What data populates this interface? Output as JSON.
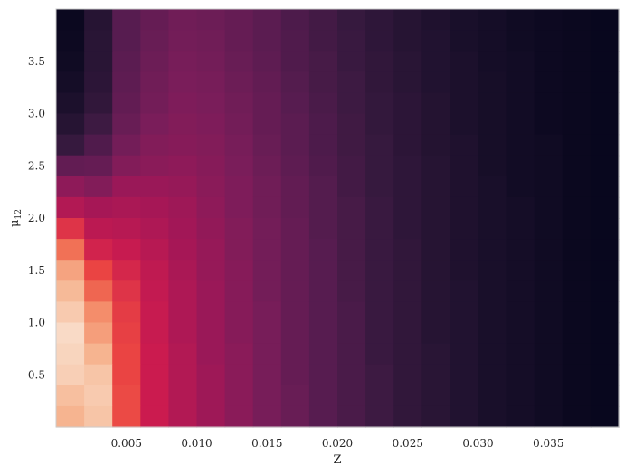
{
  "chart_data": {
    "type": "heatmap",
    "title": "",
    "xlabel": "Z",
    "ylabel": "μ",
    "ylabel_sub": "12",
    "x_ticks": [
      0.005,
      0.01,
      0.015,
      0.02,
      0.025,
      0.03,
      0.035
    ],
    "x_tick_labels": [
      "0.005",
      "0.010",
      "0.015",
      "0.020",
      "0.025",
      "0.030",
      "0.035"
    ],
    "y_ticks": [
      0.5,
      1.0,
      1.5,
      2.0,
      2.5,
      3.0,
      3.5
    ],
    "y_tick_labels": [
      "0.5",
      "1.0",
      "1.5",
      "2.0",
      "2.5",
      "3.0",
      "3.5"
    ],
    "xlim": [
      0.0,
      0.04
    ],
    "ylim": [
      0.0,
      4.0
    ],
    "n_cols": 20,
    "n_rows": 20,
    "colormap": "rocket",
    "grid": false,
    "z_rows_top_to_bottom": [
      [
        0.03,
        0.14,
        0.3,
        0.34,
        0.37,
        0.36,
        0.34,
        0.31,
        0.27,
        0.24,
        0.2,
        0.17,
        0.14,
        0.11,
        0.09,
        0.07,
        0.05,
        0.04,
        0.03,
        0.02
      ],
      [
        0.04,
        0.15,
        0.3,
        0.35,
        0.38,
        0.37,
        0.34,
        0.31,
        0.28,
        0.24,
        0.21,
        0.17,
        0.14,
        0.12,
        0.09,
        0.07,
        0.05,
        0.04,
        0.03,
        0.02
      ],
      [
        0.05,
        0.15,
        0.31,
        0.36,
        0.39,
        0.38,
        0.35,
        0.32,
        0.28,
        0.25,
        0.21,
        0.18,
        0.15,
        0.12,
        0.1,
        0.07,
        0.06,
        0.04,
        0.03,
        0.02
      ],
      [
        0.07,
        0.16,
        0.32,
        0.37,
        0.4,
        0.39,
        0.36,
        0.33,
        0.29,
        0.25,
        0.22,
        0.18,
        0.15,
        0.12,
        0.1,
        0.08,
        0.06,
        0.04,
        0.03,
        0.02
      ],
      [
        0.1,
        0.18,
        0.33,
        0.38,
        0.41,
        0.4,
        0.37,
        0.34,
        0.3,
        0.26,
        0.22,
        0.19,
        0.16,
        0.13,
        0.1,
        0.08,
        0.06,
        0.04,
        0.03,
        0.02
      ],
      [
        0.14,
        0.22,
        0.35,
        0.4,
        0.42,
        0.41,
        0.38,
        0.34,
        0.31,
        0.27,
        0.23,
        0.19,
        0.16,
        0.13,
        0.1,
        0.08,
        0.06,
        0.04,
        0.03,
        0.02
      ],
      [
        0.2,
        0.28,
        0.38,
        0.42,
        0.43,
        0.42,
        0.39,
        0.35,
        0.31,
        0.27,
        0.23,
        0.2,
        0.16,
        0.13,
        0.11,
        0.08,
        0.06,
        0.05,
        0.03,
        0.02
      ],
      [
        0.33,
        0.34,
        0.42,
        0.44,
        0.45,
        0.43,
        0.4,
        0.36,
        0.32,
        0.28,
        0.24,
        0.2,
        0.17,
        0.14,
        0.11,
        0.08,
        0.06,
        0.05,
        0.03,
        0.02
      ],
      [
        0.45,
        0.42,
        0.48,
        0.48,
        0.47,
        0.44,
        0.41,
        0.37,
        0.33,
        0.29,
        0.24,
        0.2,
        0.17,
        0.14,
        0.11,
        0.09,
        0.06,
        0.05,
        0.03,
        0.02
      ],
      [
        0.54,
        0.51,
        0.52,
        0.51,
        0.49,
        0.45,
        0.41,
        0.37,
        0.33,
        0.29,
        0.25,
        0.21,
        0.17,
        0.14,
        0.11,
        0.09,
        0.07,
        0.05,
        0.03,
        0.02
      ],
      [
        0.66,
        0.56,
        0.55,
        0.53,
        0.5,
        0.46,
        0.42,
        0.38,
        0.34,
        0.29,
        0.25,
        0.21,
        0.17,
        0.14,
        0.11,
        0.09,
        0.07,
        0.05,
        0.03,
        0.02
      ],
      [
        0.78,
        0.62,
        0.59,
        0.55,
        0.51,
        0.47,
        0.42,
        0.38,
        0.34,
        0.3,
        0.25,
        0.21,
        0.18,
        0.14,
        0.11,
        0.09,
        0.07,
        0.05,
        0.03,
        0.02
      ],
      [
        0.87,
        0.7,
        0.63,
        0.57,
        0.52,
        0.47,
        0.43,
        0.38,
        0.34,
        0.3,
        0.25,
        0.21,
        0.18,
        0.14,
        0.11,
        0.09,
        0.07,
        0.05,
        0.03,
        0.02
      ],
      [
        0.91,
        0.76,
        0.66,
        0.58,
        0.53,
        0.48,
        0.43,
        0.38,
        0.34,
        0.3,
        0.25,
        0.21,
        0.18,
        0.14,
        0.12,
        0.09,
        0.07,
        0.05,
        0.03,
        0.02
      ],
      [
        0.94,
        0.83,
        0.68,
        0.59,
        0.53,
        0.48,
        0.43,
        0.39,
        0.34,
        0.3,
        0.26,
        0.21,
        0.18,
        0.14,
        0.12,
        0.09,
        0.07,
        0.05,
        0.03,
        0.02
      ],
      [
        0.97,
        0.86,
        0.69,
        0.59,
        0.53,
        0.48,
        0.43,
        0.39,
        0.34,
        0.3,
        0.26,
        0.21,
        0.18,
        0.14,
        0.12,
        0.09,
        0.07,
        0.05,
        0.03,
        0.02
      ],
      [
        0.96,
        0.9,
        0.7,
        0.6,
        0.54,
        0.48,
        0.44,
        0.39,
        0.34,
        0.3,
        0.26,
        0.21,
        0.18,
        0.15,
        0.12,
        0.09,
        0.07,
        0.05,
        0.03,
        0.02
      ],
      [
        0.95,
        0.93,
        0.7,
        0.6,
        0.54,
        0.49,
        0.44,
        0.39,
        0.34,
        0.3,
        0.26,
        0.22,
        0.18,
        0.15,
        0.12,
        0.09,
        0.07,
        0.05,
        0.03,
        0.02
      ],
      [
        0.92,
        0.94,
        0.71,
        0.6,
        0.54,
        0.49,
        0.44,
        0.39,
        0.35,
        0.3,
        0.26,
        0.22,
        0.18,
        0.15,
        0.12,
        0.09,
        0.07,
        0.05,
        0.03,
        0.02
      ],
      [
        0.9,
        0.93,
        0.71,
        0.6,
        0.54,
        0.49,
        0.44,
        0.39,
        0.35,
        0.3,
        0.26,
        0.22,
        0.18,
        0.15,
        0.12,
        0.09,
        0.07,
        0.05,
        0.03,
        0.02
      ]
    ],
    "colors": {
      "background": "#ffffff",
      "axis_frame": "#cccccc",
      "tick_text": "#262626"
    }
  }
}
